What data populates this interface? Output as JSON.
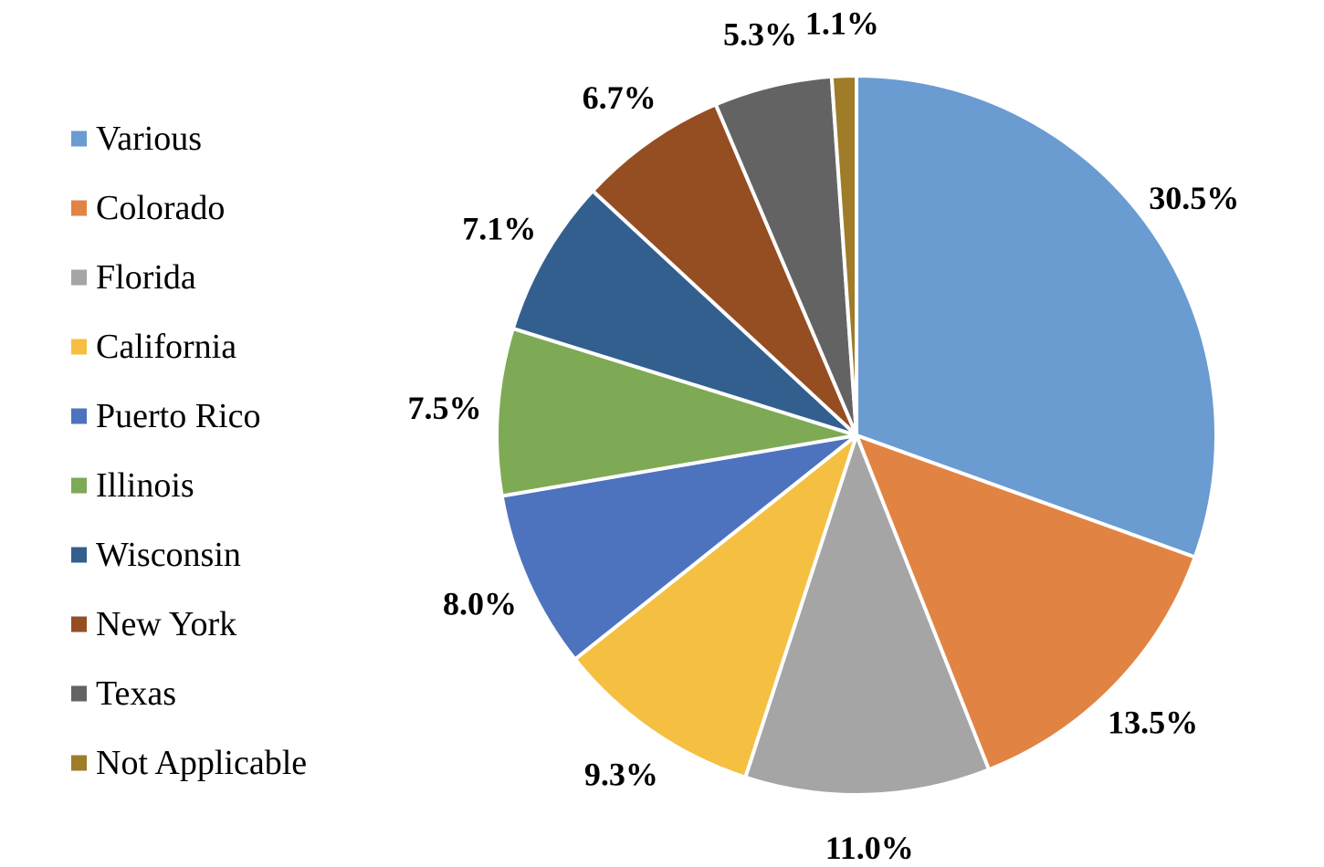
{
  "chart_data": {
    "type": "pie",
    "title": "",
    "legend_position": "left",
    "start_angle_deg": 0,
    "direction": "clockwise",
    "categories": [
      "Various",
      "Colorado",
      "Florida",
      "California",
      "Puerto Rico",
      "Illinois",
      "Wisconsin",
      "New York",
      "Texas",
      "Not Applicable"
    ],
    "values": [
      30.5,
      13.5,
      11.0,
      9.3,
      8.0,
      7.5,
      7.1,
      6.7,
      5.3,
      1.1
    ],
    "labels": [
      "30.5%",
      "13.5%",
      "11.0%",
      "9.3%",
      "8.0%",
      "7.5%",
      "7.1%",
      "6.7%",
      "5.3%",
      "1.1%"
    ],
    "colors": [
      "#6A9BD1",
      "#E18343",
      "#A5A5A5",
      "#F5BF41",
      "#4E73BE",
      "#7EA955",
      "#335F8E",
      "#954D22",
      "#636363",
      "#9E7C28"
    ]
  }
}
